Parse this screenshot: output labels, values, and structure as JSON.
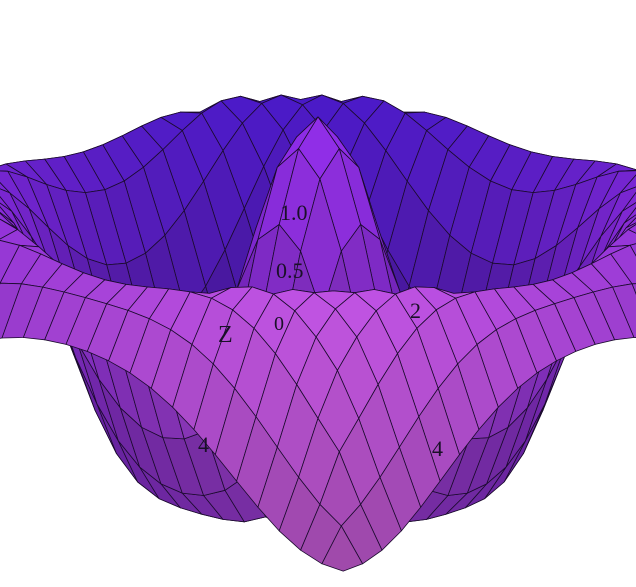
{
  "figure": {
    "surface_colors": {
      "near": "#e86cf5",
      "mid": "#8a2be2",
      "far": "#2b12c8",
      "grid_line": "#1b0b2e"
    },
    "axis_labels": {
      "z_axis_title": "Z",
      "z_tick_top": "1.0",
      "z_tick_mid": "0.5",
      "z_tick_zero": "0",
      "right_tick": "2",
      "front_left_tick": "4",
      "front_right_tick": "4"
    }
  }
}
